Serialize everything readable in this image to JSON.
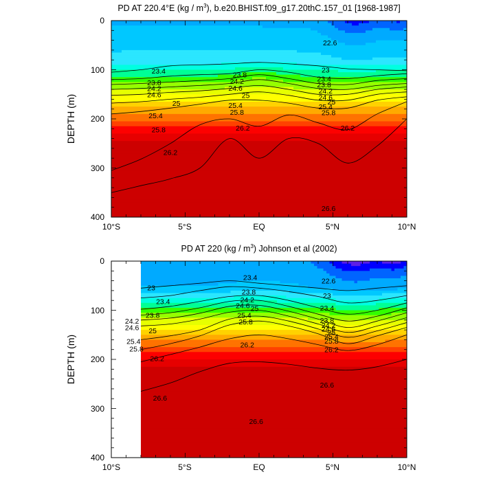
{
  "chart_data": [
    {
      "type": "heatmap",
      "title": "PD AT 220.4°E (kg / m³), b.e20.BHIST.f09_g17.20thC.157_01 [1968-1987]",
      "xlabel": "",
      "ylabel": "DEPTH (m)",
      "x_ticks": [
        "10°S",
        "5°S",
        "EQ",
        "5°N",
        "10°N"
      ],
      "y_ticks": [
        "0",
        "100",
        "200",
        "300",
        "400"
      ],
      "xlim": [
        -10,
        10
      ],
      "ylim": [
        0,
        400
      ],
      "y_inverted": true,
      "data_xlim": [
        -10,
        10
      ],
      "contour_levels": [
        22.2,
        22.6,
        23,
        23.4,
        23.8,
        24.2,
        24.6,
        25,
        25.4,
        25.8,
        26.2,
        26.6
      ],
      "isopycnals": [
        {
          "level": 23.4,
          "x": [
            -10,
            -8,
            -6,
            -4,
            -2,
            0,
            2,
            4,
            6,
            8,
            10
          ],
          "depth": [
            105,
            100,
            92,
            90,
            88,
            85,
            88,
            92,
            98,
            100,
            102
          ]
        },
        {
          "level": 23.8,
          "x": [
            -10,
            -8,
            -6,
            -4,
            -2,
            0,
            2,
            4,
            6,
            8,
            10
          ],
          "depth": [
            120,
            118,
            113,
            110,
            108,
            100,
            105,
            115,
            118,
            112,
            108
          ]
        },
        {
          "level": 24.2,
          "x": [
            -10,
            -8,
            -6,
            -4,
            -2,
            0,
            2,
            4,
            6,
            8,
            10
          ],
          "depth": [
            130,
            128,
            125,
            122,
            118,
            110,
            118,
            128,
            130,
            122,
            118
          ]
        },
        {
          "level": 24.6,
          "x": [
            -10,
            -8,
            -6,
            -4,
            -2,
            0,
            2,
            4,
            6,
            8,
            10
          ],
          "depth": [
            140,
            138,
            135,
            132,
            128,
            120,
            128,
            138,
            140,
            132,
            128
          ]
        },
        {
          "level": 25.0,
          "x": [
            -10,
            -8,
            -6,
            -4,
            -2,
            0,
            2,
            4,
            6,
            8,
            10
          ],
          "depth": [
            152,
            150,
            146,
            143,
            138,
            132,
            140,
            150,
            150,
            140,
            135
          ]
        },
        {
          "level": 25.4,
          "x": [
            -10,
            -8,
            -6,
            -4,
            -2,
            0,
            2,
            4,
            6,
            8,
            10
          ],
          "depth": [
            168,
            165,
            160,
            156,
            150,
            145,
            152,
            162,
            162,
            150,
            145
          ]
        },
        {
          "level": 25.8,
          "x": [
            -10,
            -8,
            -6,
            -4,
            -2,
            0,
            2,
            4,
            6,
            8,
            10
          ],
          "depth": [
            190,
            185,
            178,
            170,
            162,
            162,
            168,
            178,
            178,
            162,
            155
          ]
        },
        {
          "level": 26.2,
          "x": [
            -10,
            -8,
            -6,
            -4,
            -2,
            0,
            2,
            4,
            6,
            8,
            10
          ],
          "depth": [
            305,
            282,
            250,
            212,
            200,
            215,
            192,
            208,
            222,
            190,
            165
          ]
        },
        {
          "level": 26.6,
          "x": [
            -10,
            -8,
            -6,
            -4,
            -2,
            0,
            2,
            4,
            6,
            8,
            10
          ],
          "depth": [
            350,
            336,
            322,
            300,
            240,
            280,
            240,
            250,
            290,
            255,
            200
          ]
        }
      ],
      "contour_labels": [
        {
          "text": "23.4",
          "x": -6.8,
          "depth": 102
        },
        {
          "text": "23.8",
          "x": -7.1,
          "depth": 126
        },
        {
          "text": "24.2",
          "x": -7.1,
          "depth": 138
        },
        {
          "text": "24.6",
          "x": -7.1,
          "depth": 150
        },
        {
          "text": "25",
          "x": -5.6,
          "depth": 168
        },
        {
          "text": "25.4",
          "x": -7.0,
          "depth": 193
        },
        {
          "text": "25.8",
          "x": -6.8,
          "depth": 222
        },
        {
          "text": "26.2",
          "x": -6.0,
          "depth": 268
        },
        {
          "text": "23.8",
          "x": -1.3,
          "depth": 110
        },
        {
          "text": "24.2",
          "x": -1.5,
          "depth": 123
        },
        {
          "text": "24.6",
          "x": -1.6,
          "depth": 137
        },
        {
          "text": "25",
          "x": -0.9,
          "depth": 152
        },
        {
          "text": "25.4",
          "x": -1.6,
          "depth": 172
        },
        {
          "text": "25.8",
          "x": -1.5,
          "depth": 186
        },
        {
          "text": "26.2",
          "x": -1.1,
          "depth": 218
        },
        {
          "text": "22.6",
          "x": 4.8,
          "depth": 45
        },
        {
          "text": "23",
          "x": 4.5,
          "depth": 100
        },
        {
          "text": "23.4",
          "x": 4.4,
          "depth": 118
        },
        {
          "text": "23.8",
          "x": 4.4,
          "depth": 130
        },
        {
          "text": "24.2",
          "x": 4.5,
          "depth": 143
        },
        {
          "text": "24.6",
          "x": 4.5,
          "depth": 156
        },
        {
          "text": "25",
          "x": 4.9,
          "depth": 165
        },
        {
          "text": "25.4",
          "x": 4.5,
          "depth": 175
        },
        {
          "text": "25.8",
          "x": 4.7,
          "depth": 187
        },
        {
          "text": "26.2",
          "x": 6.0,
          "depth": 218
        },
        {
          "text": "26.6",
          "x": 4.7,
          "depth": 382
        }
      ]
    },
    {
      "type": "heatmap",
      "title": "PD AT 220 (kg / m³) Johnson et al (2002)",
      "xlabel": "",
      "ylabel": "DEPTH (m)",
      "x_ticks": [
        "10°S",
        "5°S",
        "EQ",
        "5°N",
        "10°N"
      ],
      "y_ticks": [
        "0",
        "100",
        "200",
        "300",
        "400"
      ],
      "xlim": [
        -10,
        10
      ],
      "ylim": [
        0,
        400
      ],
      "y_inverted": true,
      "data_xlim": [
        -8,
        10
      ],
      "contour_levels": [
        22.2,
        22.6,
        23,
        23.4,
        23.8,
        24.2,
        24.6,
        25,
        25.4,
        25.8,
        26.2,
        26.6
      ],
      "isopycnals": [
        {
          "level": 23.0,
          "x": [
            -8,
            -6,
            -4,
            -2,
            0,
            2,
            4,
            6,
            8,
            10
          ],
          "depth": [
            55,
            50,
            45,
            40,
            45,
            50,
            55,
            60,
            55,
            50
          ]
        },
        {
          "level": 23.4,
          "x": [
            -8,
            -6,
            -4,
            -2,
            0,
            2,
            4,
            6,
            8,
            10
          ],
          "depth": [
            75,
            70,
            60,
            52,
            55,
            62,
            72,
            85,
            80,
            70
          ]
        },
        {
          "level": 23.8,
          "x": [
            -8,
            -6,
            -4,
            -2,
            0,
            2,
            4,
            6,
            8,
            10
          ],
          "depth": [
            98,
            92,
            82,
            72,
            70,
            80,
            95,
            108,
            100,
            85
          ]
        },
        {
          "level": 24.2,
          "x": [
            -8,
            -6,
            -4,
            -2,
            0,
            2,
            4,
            6,
            8,
            10
          ],
          "depth": [
            110,
            105,
            95,
            82,
            80,
            92,
            108,
            122,
            112,
            95
          ]
        },
        {
          "level": 24.6,
          "x": [
            -8,
            -6,
            -4,
            -2,
            0,
            2,
            4,
            6,
            8,
            10
          ],
          "depth": [
            120,
            116,
            106,
            92,
            90,
            102,
            118,
            135,
            122,
            105
          ]
        },
        {
          "level": 25.0,
          "x": [
            -8,
            -6,
            -4,
            -2,
            0,
            2,
            4,
            6,
            8,
            10
          ],
          "depth": [
            132,
            128,
            118,
            104,
            100,
            112,
            128,
            145,
            132,
            115
          ]
        },
        {
          "level": 25.4,
          "x": [
            -8,
            -6,
            -4,
            -2,
            0,
            2,
            4,
            6,
            8,
            10
          ],
          "depth": [
            160,
            152,
            140,
            118,
            112,
            122,
            138,
            155,
            142,
            125
          ]
        },
        {
          "level": 25.8,
          "x": [
            -8,
            -6,
            -4,
            -2,
            0,
            2,
            4,
            6,
            8,
            10
          ],
          "depth": [
            180,
            168,
            152,
            130,
            122,
            132,
            148,
            168,
            152,
            135
          ]
        },
        {
          "level": 26.2,
          "x": [
            -8,
            -6,
            -4,
            -2,
            0,
            2,
            4,
            6,
            8,
            10
          ],
          "depth": [
            205,
            190,
            175,
            158,
            150,
            158,
            170,
            182,
            170,
            150
          ]
        },
        {
          "level": 26.6,
          "x": [
            -8,
            -6,
            -4,
            -2,
            0,
            2,
            4,
            6,
            8,
            10
          ],
          "depth": [
            265,
            248,
            225,
            208,
            205,
            210,
            218,
            222,
            215,
            200
          ]
        }
      ],
      "contour_labels": [
        {
          "text": "23",
          "x": -7.3,
          "depth": 54
        },
        {
          "text": "23.4",
          "x": -6.5,
          "depth": 82
        },
        {
          "text": "23.8",
          "x": -7.2,
          "depth": 110
        },
        {
          "text": "24.2",
          "x": -8.6,
          "depth": 122
        },
        {
          "text": "24.6",
          "x": -8.6,
          "depth": 135
        },
        {
          "text": "25",
          "x": -7.2,
          "depth": 141
        },
        {
          "text": "25.4",
          "x": -8.5,
          "depth": 163
        },
        {
          "text": "25.8",
          "x": -8.3,
          "depth": 178
        },
        {
          "text": "26.2",
          "x": -6.9,
          "depth": 198
        },
        {
          "text": "23.4",
          "x": -0.6,
          "depth": 33
        },
        {
          "text": "23.8",
          "x": -0.7,
          "depth": 62
        },
        {
          "text": "24.2",
          "x": -0.8,
          "depth": 78
        },
        {
          "text": "24.6",
          "x": -1.1,
          "depth": 90
        },
        {
          "text": "25",
          "x": -0.3,
          "depth": 96
        },
        {
          "text": "25.4",
          "x": -1.0,
          "depth": 110
        },
        {
          "text": "25.8",
          "x": -0.9,
          "depth": 123
        },
        {
          "text": "26.2",
          "x": -0.8,
          "depth": 170
        },
        {
          "text": "22.6",
          "x": 4.7,
          "depth": 40
        },
        {
          "text": "23",
          "x": 4.6,
          "depth": 70
        },
        {
          "text": "23.4",
          "x": 4.6,
          "depth": 95
        },
        {
          "text": "23.8",
          "x": 4.6,
          "depth": 120
        },
        {
          "text": "24.2",
          "x": 4.7,
          "depth": 130
        },
        {
          "text": "24.6",
          "x": 4.7,
          "depth": 138
        },
        {
          "text": "25",
          "x": 4.9,
          "depth": 145
        },
        {
          "text": "25.4",
          "x": 4.9,
          "depth": 153
        },
        {
          "text": "25.8",
          "x": 4.9,
          "depth": 162
        },
        {
          "text": "26.2",
          "x": 4.9,
          "depth": 180
        },
        {
          "text": "26.6",
          "x": 4.6,
          "depth": 252
        },
        {
          "text": "26.6",
          "x": -6.7,
          "depth": 278
        },
        {
          "text": "26.6",
          "x": -0.2,
          "depth": 326
        }
      ]
    }
  ],
  "colors": {
    "band_fills": [
      "#aa00ee",
      "#5d1fe6",
      "#0000ff",
      "#0064ff",
      "#00aaff",
      "#00c8ff",
      "#2be6ff",
      "#00ffe1",
      "#00ff96",
      "#32ff00",
      "#96ff00",
      "#e6ff00",
      "#ffff00",
      "#ffd200",
      "#ffaa00",
      "#ff7300",
      "#ff4100",
      "#fd0000",
      "#e60000",
      "#cd0000"
    ],
    "contour_line": "#000000"
  }
}
